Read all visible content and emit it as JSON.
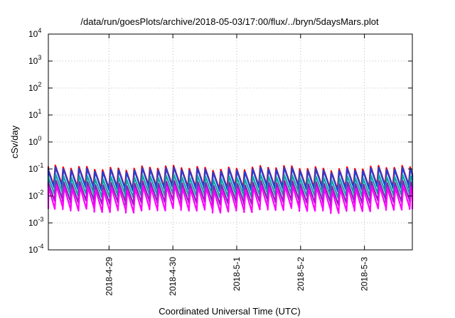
{
  "chart_data": {
    "type": "line",
    "title": "/data/run/goesPlots/archive/2018-05-03/17:00/flux/../bryn/5daysMars.plot",
    "xlabel": "Coordinated Universal Time (UTC)",
    "ylabel": "cSv/day",
    "y_scale": "log",
    "ylim": [
      0.0001,
      10000
    ],
    "y_ticks": [
      {
        "base": "10",
        "exp": "-4",
        "value": 0.0001
      },
      {
        "base": "10",
        "exp": "-3",
        "value": 0.001
      },
      {
        "base": "10",
        "exp": "-2",
        "value": 0.01
      },
      {
        "base": "10",
        "exp": "-1",
        "value": 0.1
      },
      {
        "base": "10",
        "exp": "0",
        "value": 1
      },
      {
        "base": "10",
        "exp": "1",
        "value": 10
      },
      {
        "base": "10",
        "exp": "2",
        "value": 100
      },
      {
        "base": "10",
        "exp": "3",
        "value": 1000
      },
      {
        "base": "10",
        "exp": "4",
        "value": 10000
      }
    ],
    "x_unit": "days",
    "xlim": [
      -0.95,
      4.75
    ],
    "x_ticks": [
      {
        "label": "2018-4-29",
        "value": 0
      },
      {
        "label": "2018-4-30",
        "value": 1
      },
      {
        "label": "2018-5-1",
        "value": 2
      },
      {
        "label": "2018-5-2",
        "value": 3
      },
      {
        "label": "2018-5-3",
        "value": 4
      }
    ],
    "grid": true,
    "cycles_per_day": 8.1,
    "series": [
      {
        "name": "series-red",
        "color": "#ff0000",
        "peak": 0.11,
        "trough": 0.022
      },
      {
        "name": "series-blue",
        "color": "#1f3fd8",
        "peak": 0.095,
        "trough": 0.019
      },
      {
        "name": "series-teal",
        "color": "#12a5a5",
        "peak": 0.05,
        "trough": 0.011
      },
      {
        "name": "series-purple",
        "color": "#8b1fb8",
        "peak": 0.03,
        "trough": 0.006
      },
      {
        "name": "series-magenta",
        "color": "#ff00ff",
        "peak": 0.02,
        "trough": 0.003
      }
    ]
  }
}
